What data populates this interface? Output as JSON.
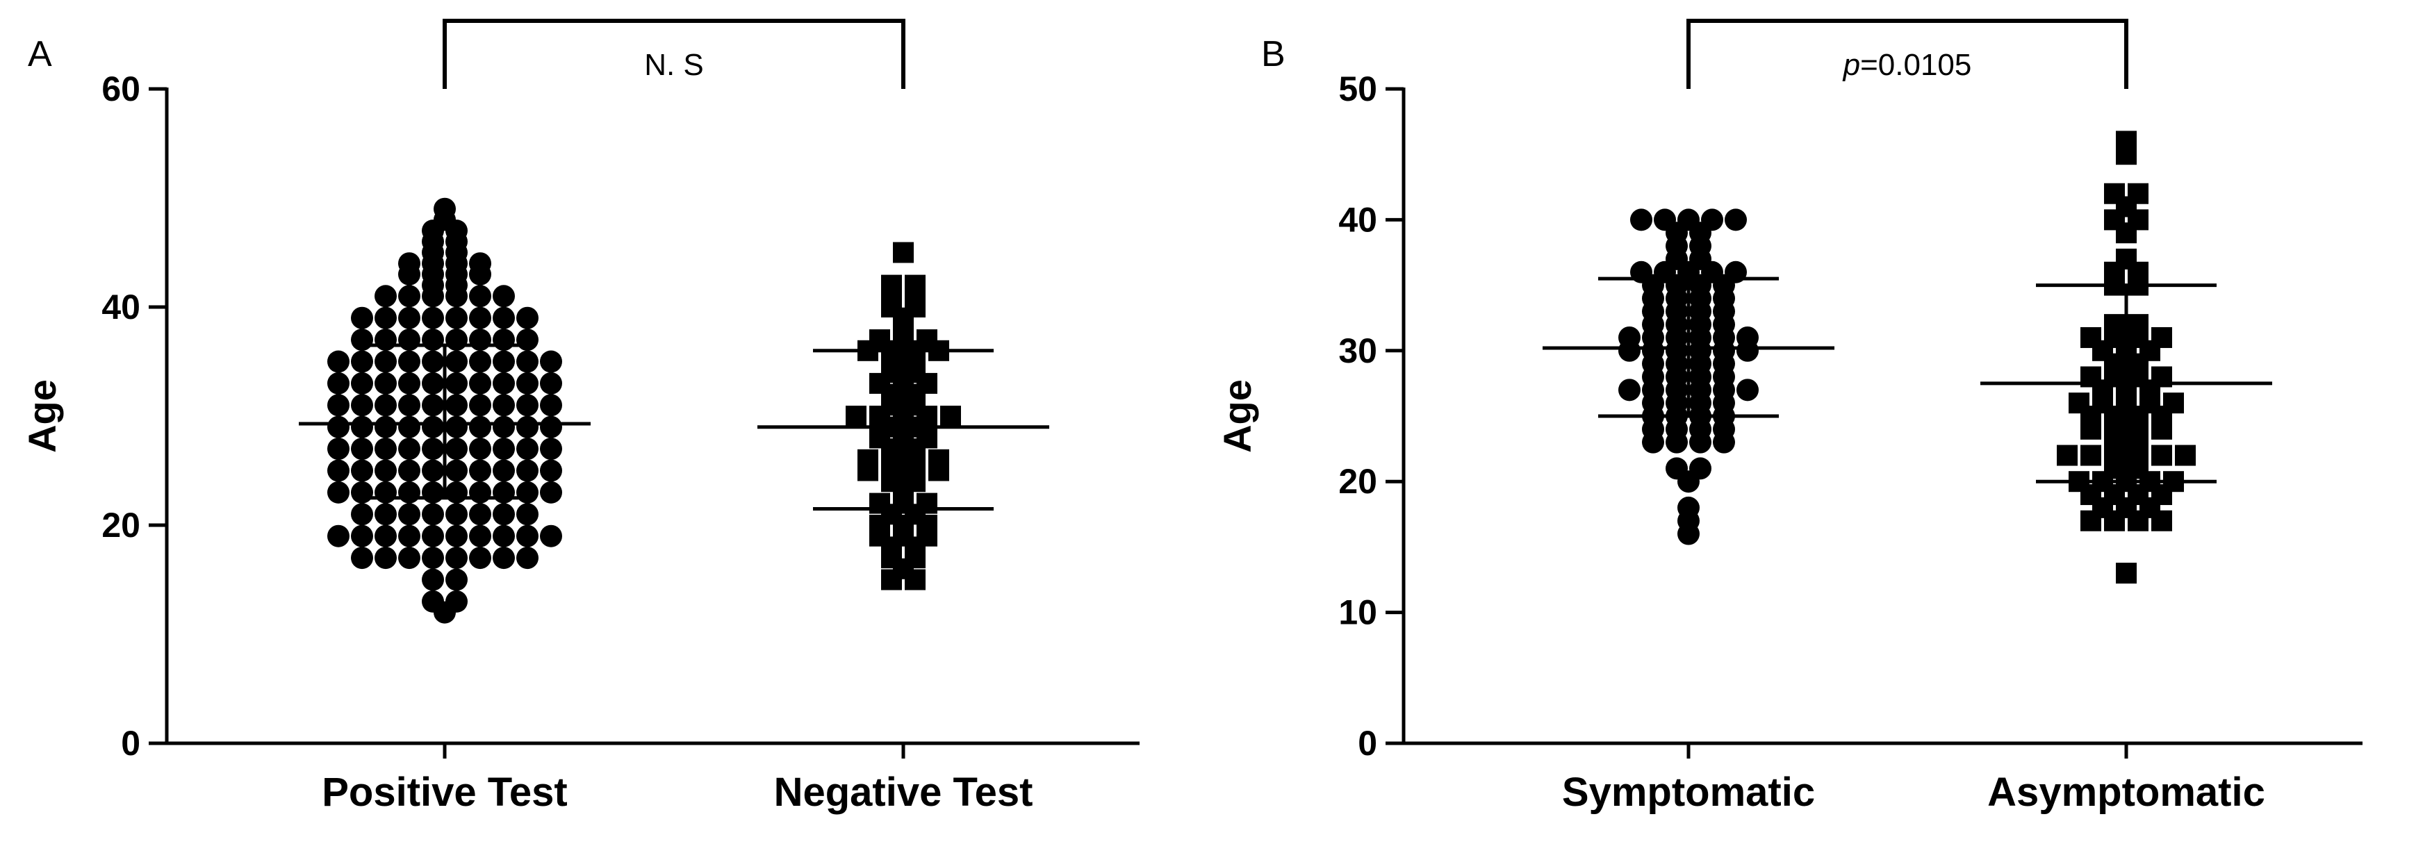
{
  "chart_data": [
    {
      "type": "scatter",
      "panel_label": "A",
      "ylabel": "Age",
      "ylim": [
        0,
        60
      ],
      "yticks": [
        "0",
        "20",
        "40",
        "60"
      ],
      "categories": [
        "Positive Test",
        "Negative Test"
      ],
      "marker_shapes": [
        "circle",
        "square"
      ],
      "significance": {
        "label": "N. S",
        "italic_prefix": "",
        "rest": "N. S"
      },
      "series": [
        {
          "category": "Positive Test",
          "mean": 29.3,
          "sd_low": 22.5,
          "sd_high": 36.5,
          "values": [
            49,
            47,
            48,
            47,
            46,
            46,
            45,
            45,
            44,
            44,
            44,
            44,
            43,
            43,
            43,
            43,
            42,
            42,
            41,
            41,
            41,
            41,
            41,
            41,
            39,
            39,
            39,
            39,
            39,
            39,
            39,
            39,
            37,
            37,
            37,
            37,
            37,
            37,
            37,
            37,
            35,
            35,
            35,
            35,
            35,
            35,
            35,
            35,
            35,
            35,
            33,
            33,
            33,
            33,
            33,
            33,
            33,
            33,
            33,
            33,
            31,
            31,
            31,
            31,
            31,
            31,
            31,
            31,
            31,
            31,
            29,
            29,
            29,
            29,
            29,
            29,
            29,
            29,
            29,
            29,
            27,
            27,
            27,
            27,
            27,
            27,
            27,
            27,
            27,
            27,
            25,
            25,
            25,
            25,
            25,
            25,
            25,
            25,
            25,
            25,
            23,
            23,
            23,
            23,
            23,
            23,
            23,
            23,
            23,
            23,
            21,
            21,
            21,
            21,
            21,
            21,
            21,
            21,
            19,
            19,
            19,
            19,
            19,
            19,
            19,
            19,
            19,
            19,
            17,
            17,
            17,
            17,
            17,
            17,
            17,
            17,
            15,
            15,
            13,
            13,
            12
          ]
        },
        {
          "category": "Negative Test",
          "mean": 29,
          "sd_low": 21.5,
          "sd_high": 36,
          "values": [
            45,
            42,
            42,
            41,
            41,
            40,
            40,
            39,
            38,
            37,
            37,
            37,
            36,
            36,
            36,
            36,
            35,
            35,
            34,
            34,
            33,
            33,
            33,
            32,
            32,
            31,
            31,
            30,
            30,
            30,
            30,
            30,
            29,
            29,
            28,
            28,
            28,
            27,
            27,
            26,
            26,
            26,
            26,
            25,
            25,
            25,
            25,
            24,
            24,
            23,
            22,
            22,
            22,
            21,
            21,
            20,
            20,
            20,
            19,
            19,
            19,
            18,
            18,
            17,
            17,
            16,
            15,
            15
          ]
        }
      ]
    },
    {
      "type": "scatter",
      "panel_label": "B",
      "ylabel": "Age",
      "ylim": [
        0,
        50
      ],
      "yticks": [
        "0",
        "10",
        "20",
        "30",
        "40",
        "50"
      ],
      "categories": [
        "Symptomatic",
        "Asymptomatic"
      ],
      "marker_shapes": [
        "circle",
        "square"
      ],
      "significance": {
        "label": "p=0.0105",
        "italic_prefix": "p",
        "rest": "=0.0105"
      },
      "series": [
        {
          "category": "Symptomatic",
          "mean": 30.2,
          "sd_low": 25,
          "sd_high": 35.5,
          "values": [
            40,
            40,
            40,
            40,
            40,
            39,
            39,
            38,
            38,
            37,
            37,
            36,
            36,
            36,
            36,
            36,
            35,
            35,
            35,
            35,
            34,
            34,
            34,
            34,
            33,
            33,
            33,
            33,
            32,
            32,
            32,
            32,
            31,
            31,
            31,
            31,
            31,
            31,
            30,
            30,
            30,
            30,
            30,
            30,
            29,
            29,
            29,
            29,
            28,
            28,
            28,
            28,
            27,
            27,
            27,
            27,
            27,
            27,
            26,
            26,
            26,
            26,
            25,
            25,
            25,
            25,
            24,
            24,
            24,
            24,
            23,
            23,
            23,
            23,
            21,
            21,
            20,
            18,
            17,
            16
          ]
        },
        {
          "category": "Asymptomatic",
          "mean": 27.5,
          "sd_low": 20,
          "sd_high": 35,
          "values": [
            46,
            45,
            42,
            42,
            41,
            40,
            40,
            39,
            37,
            36,
            36,
            35,
            35,
            32,
            32,
            31,
            31,
            31,
            31,
            30,
            30,
            30,
            29,
            29,
            28,
            28,
            28,
            28,
            27,
            27,
            27,
            26,
            26,
            26,
            26,
            26,
            25,
            25,
            25,
            25,
            24,
            24,
            24,
            24,
            23,
            23,
            22,
            22,
            22,
            22,
            22,
            22,
            21,
            21,
            20,
            20,
            20,
            20,
            20,
            19,
            19,
            19,
            19,
            18,
            18,
            18,
            17,
            17,
            17,
            17,
            13
          ]
        }
      ]
    }
  ]
}
